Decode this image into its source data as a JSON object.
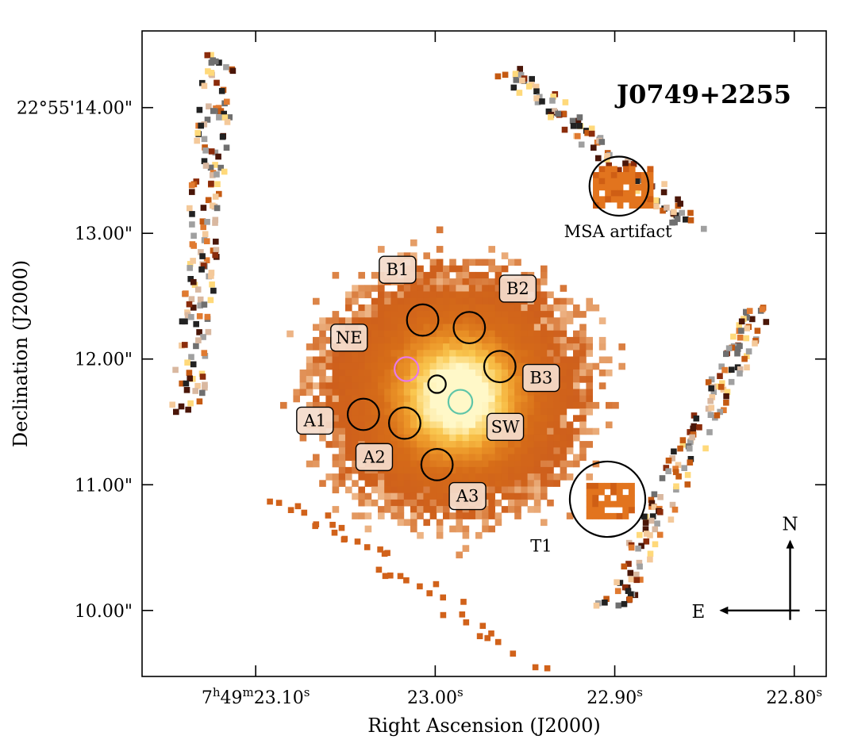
{
  "chart_data": {
    "type": "heatmap",
    "title": "J0749+2255",
    "xlabel": "Right Ascension (J2000)",
    "ylabel": "Declination (J2000)",
    "x_unit": "seconds of RA (7h49m)",
    "y_unit": "arcsec of Dec (22°55')",
    "xlim": [
      23.1633,
      22.7822
    ],
    "ylim": [
      9.475,
      14.61
    ],
    "x_ticks": [
      {
        "value": 23.1,
        "label_prefix": "7",
        "label_h": "h",
        "label_mid": "49",
        "label_m": "m",
        "label_sec": "23.10",
        "label_s": "s"
      },
      {
        "value": 23.0,
        "label_prefix": "",
        "label_h": "",
        "label_mid": "",
        "label_m": "",
        "label_sec": "23.00",
        "label_s": "s"
      },
      {
        "value": 22.9,
        "label_prefix": "",
        "label_h": "",
        "label_mid": "",
        "label_m": "",
        "label_sec": "22.90",
        "label_s": "s"
      },
      {
        "value": 22.8,
        "label_prefix": "",
        "label_h": "",
        "label_mid": "",
        "label_m": "",
        "label_sec": "22.80",
        "label_s": "s"
      }
    ],
    "y_ticks": [
      {
        "value": 14.0,
        "label": "22°55'14.00\""
      },
      {
        "value": 13.0,
        "label": "13.00\""
      },
      {
        "value": 12.0,
        "label": "12.00\""
      },
      {
        "value": 11.0,
        "label": "11.00\""
      },
      {
        "value": 10.0,
        "label": "10.00\""
      }
    ],
    "colormap": "gist_heat_r",
    "emission": {
      "peak_ra": 22.988,
      "peak_dec": 11.72,
      "core_sigma_arcsec": 0.32,
      "halo_ra": 22.992,
      "halo_dec": 11.76,
      "halo_sigma_arcsec": 0.62,
      "outer_radius_arcsec": 1.02,
      "outer_edge_arcsec": 0.3
    },
    "regions": [
      {
        "name": "B1",
        "ra": 23.007,
        "dec": 12.31,
        "radius_arcsec": 0.125,
        "circle_color": "#000000",
        "label_ra": 23.021,
        "label_dec": 12.71
      },
      {
        "name": "B2",
        "ra": 22.981,
        "dec": 12.25,
        "radius_arcsec": 0.125,
        "circle_color": "#000000",
        "label_ra": 22.954,
        "label_dec": 12.56
      },
      {
        "name": "B3",
        "ra": 22.964,
        "dec": 11.94,
        "radius_arcsec": 0.125,
        "circle_color": "#000000",
        "label_ra": 22.941,
        "label_dec": 11.85
      },
      {
        "name": "NE",
        "ra": 23.016,
        "dec": 11.92,
        "radius_arcsec": 0.095,
        "circle_color": "#e879e8",
        "label_ra": 23.048,
        "label_dec": 12.17
      },
      {
        "name": "",
        "ra": 22.999,
        "dec": 11.8,
        "radius_arcsec": 0.07,
        "circle_color": "#000000",
        "label_ra": null,
        "label_dec": null
      },
      {
        "name": "SW",
        "ra": 22.986,
        "dec": 11.66,
        "radius_arcsec": 0.095,
        "circle_color": "#5ec5a8",
        "label_ra": 22.961,
        "label_dec": 11.46
      },
      {
        "name": "A1",
        "ra": 23.04,
        "dec": 11.56,
        "radius_arcsec": 0.125,
        "circle_color": "#000000",
        "label_ra": 23.067,
        "label_dec": 11.51
      },
      {
        "name": "A2",
        "ra": 23.017,
        "dec": 11.49,
        "radius_arcsec": 0.125,
        "circle_color": "#000000",
        "label_ra": 23.034,
        "label_dec": 11.22
      },
      {
        "name": "A3",
        "ra": 22.999,
        "dec": 11.16,
        "radius_arcsec": 0.125,
        "circle_color": "#000000",
        "label_ra": 22.982,
        "label_dec": 10.91
      }
    ],
    "annotations": [
      {
        "name": "MSA artifact",
        "ra": 22.8976,
        "dec": 13.375,
        "radius_arcsec": 0.235,
        "label_ra": 22.8982,
        "label_dec": 12.97
      },
      {
        "name": "T1",
        "ra": 22.904,
        "dec": 10.885,
        "radius_arcsec": 0.3,
        "label_ra": 22.947,
        "label_dec": 10.47
      }
    ],
    "compass": {
      "north_label": "N",
      "east_label": "E",
      "origin_ra": 22.8023,
      "origin_dec": 10.0,
      "arm_arcsec": 0.55
    },
    "grid": false
  }
}
